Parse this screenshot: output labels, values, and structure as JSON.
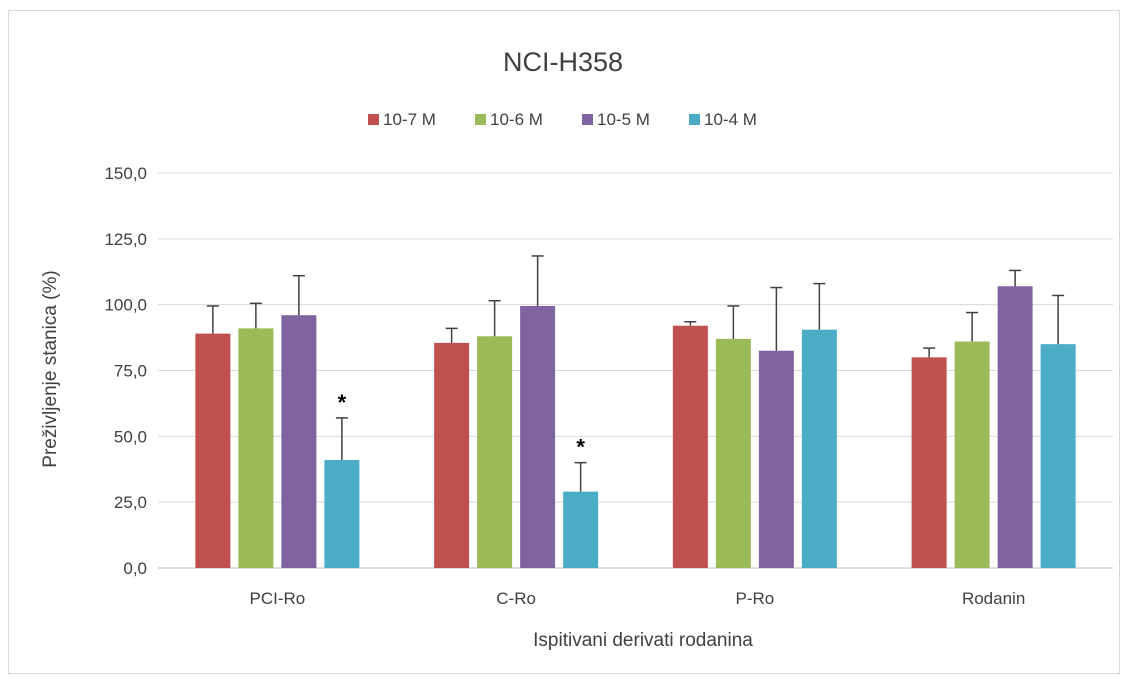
{
  "chart_data": {
    "type": "bar",
    "title": "NCI-H358",
    "xlabel": "Ispitivani derivati rodanina",
    "ylabel": "Preživljenje stanica (%)",
    "ylim": [
      0,
      150
    ],
    "yticks": [
      "0,0",
      "25,0",
      "50,0",
      "75,0",
      "100,0",
      "125,0",
      "150,0"
    ],
    "ytick_values": [
      0,
      25,
      50,
      75,
      100,
      125,
      150
    ],
    "grid": true,
    "legend_position": "top",
    "categories": [
      "PCI-Ro",
      "C-Ro",
      "P-Ro",
      "Rodanin"
    ],
    "series": [
      {
        "name": "10-7 M",
        "color": "#c0504d",
        "values": [
          89.0,
          85.5,
          92.0,
          80.0
        ],
        "errors": [
          10.5,
          5.5,
          1.5,
          3.5
        ]
      },
      {
        "name": "10-6 M",
        "color": "#9bbb59",
        "values": [
          91.0,
          88.0,
          87.0,
          86.0
        ],
        "errors": [
          9.5,
          13.5,
          12.5,
          11.0
        ]
      },
      {
        "name": "10-5 M",
        "color": "#8064a2",
        "values": [
          96.0,
          99.5,
          82.5,
          107.0
        ],
        "errors": [
          15.0,
          19.0,
          24.0,
          6.0
        ]
      },
      {
        "name": "10-4 M",
        "color": "#4bacc6",
        "values": [
          41.0,
          29.0,
          90.5,
          85.0
        ],
        "errors": [
          16.0,
          11.0,
          17.5,
          18.5
        ]
      }
    ],
    "annotations": [
      {
        "text": "*",
        "category": "PCI-Ro",
        "series": "10-4 M"
      },
      {
        "text": "*",
        "category": "C-Ro",
        "series": "10-4 M"
      }
    ]
  }
}
